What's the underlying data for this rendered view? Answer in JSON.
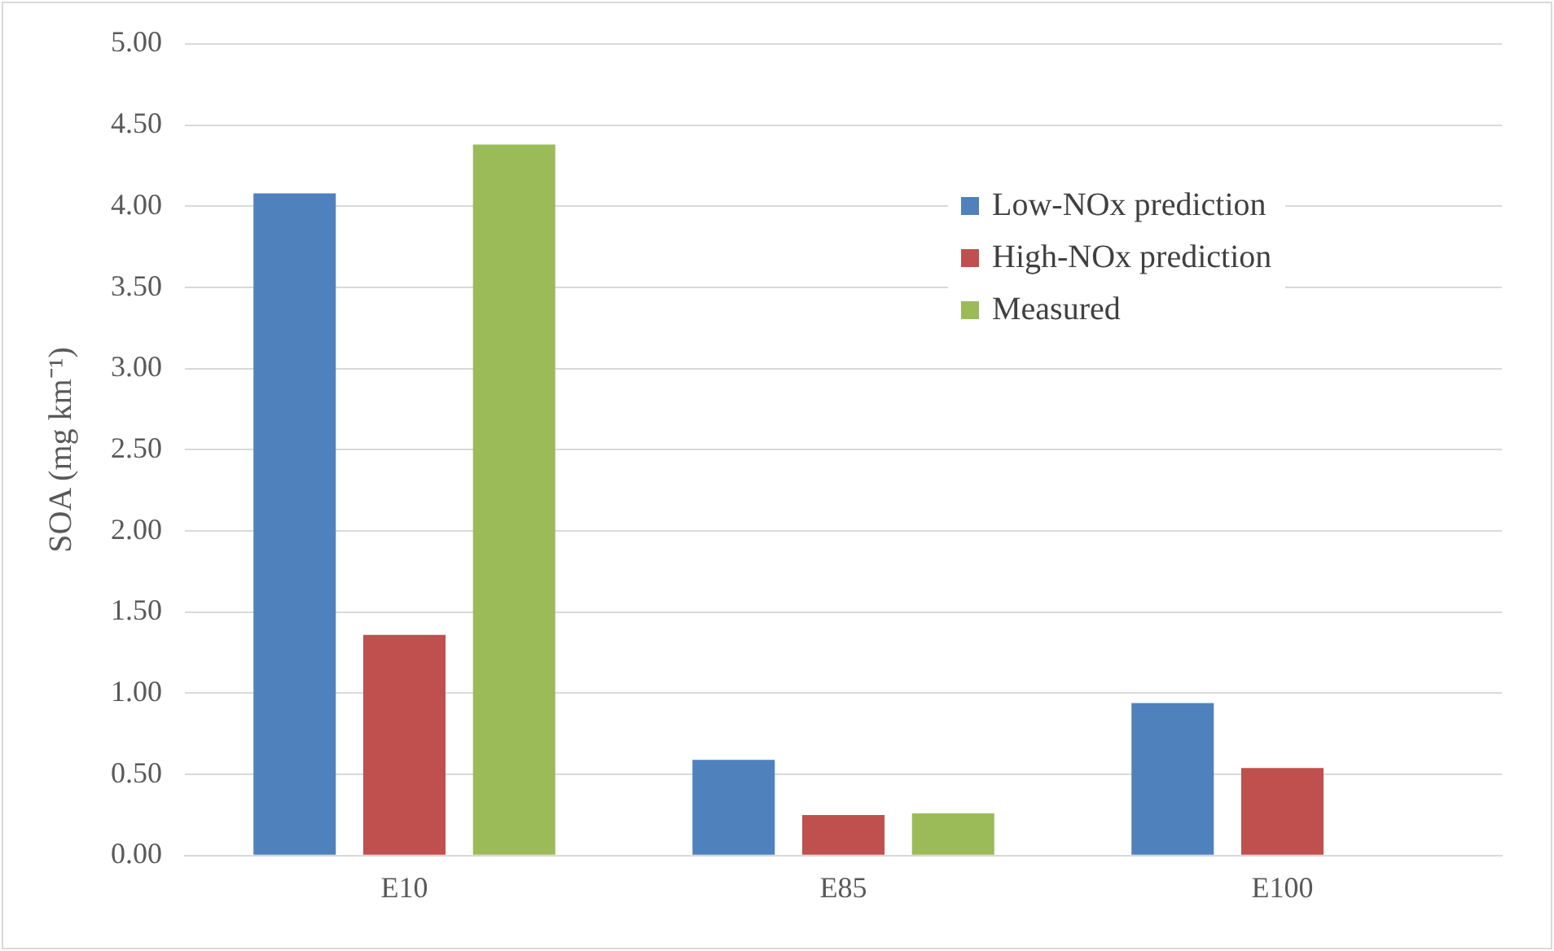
{
  "chart_data": {
    "type": "bar",
    "ylabel": "SOA (mg km⁻¹)",
    "categories": [
      "E10",
      "E85",
      "E100"
    ],
    "series": [
      {
        "name": "Low-NOx prediction",
        "color": "#4f81bd",
        "values": [
          4.08,
          0.59,
          0.94
        ]
      },
      {
        "name": "High-NOx prediction",
        "color": "#c0504d",
        "values": [
          1.36,
          0.25,
          0.54
        ]
      },
      {
        "name": "Measured",
        "color": "#9bbb59",
        "values": [
          4.38,
          0.26,
          null
        ]
      }
    ],
    "ylim": [
      0,
      5
    ],
    "yticks": [
      {
        "value": 0,
        "label": "0.00"
      },
      {
        "value": 0.5,
        "label": "0.50"
      },
      {
        "value": 1,
        "label": "1.00"
      },
      {
        "value": 1.5,
        "label": "1.50"
      },
      {
        "value": 2,
        "label": "2.00"
      },
      {
        "value": 2.5,
        "label": "2.50"
      },
      {
        "value": 3,
        "label": "3.00"
      },
      {
        "value": 3.5,
        "label": "3.50"
      },
      {
        "value": 4,
        "label": "4.00"
      },
      {
        "value": 4.5,
        "label": "4.50"
      },
      {
        "value": 5,
        "label": "5.00"
      }
    ],
    "grid": "y",
    "legend": "top right"
  }
}
